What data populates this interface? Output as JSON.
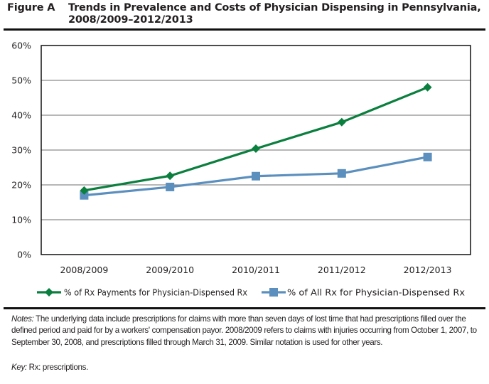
{
  "figure": {
    "label": "Figure A",
    "title_line1": "Trends in Prevalence and Costs of Physician Dispensing in Pennsylvania,",
    "title_line2": "2008/2009–2012/2013"
  },
  "chart_data": {
    "type": "line",
    "title": "Trends in Prevalence and Costs of Physician Dispensing in Pennsylvania, 2008/2009–2012/2013",
    "xlabel": "",
    "ylabel": "",
    "categories": [
      "2008/2009",
      "2009/2010",
      "2010/2011",
      "2011/2012",
      "2012/2013"
    ],
    "ylim": [
      0,
      60
    ],
    "yticks": [
      0,
      10,
      20,
      30,
      40,
      50,
      60
    ],
    "ytick_labels": [
      "0%",
      "10%",
      "20%",
      "30%",
      "40%",
      "50%",
      "60%"
    ],
    "grid": true,
    "legend_position": "bottom",
    "series": [
      {
        "name": "% of Rx Payments for Physician-Dispensed Rx",
        "values": [
          18.4,
          22.6,
          30.4,
          38.0,
          48.0
        ],
        "color": "#0b7f3e",
        "marker": "diamond"
      },
      {
        "name": "% of All Rx for Physician-Dispensed Rx",
        "values": [
          17.0,
          19.4,
          22.5,
          23.3,
          28.0
        ],
        "color": "#5b8fbe",
        "marker": "square"
      }
    ]
  },
  "notes": {
    "label": "Notes:",
    "text": " The underlying data include prescriptions for claims with more than seven days of lost time that had prescriptions filled over the defined period and paid for by a workers' compensation payor. 2008/2009 refers to claims with injuries occurring from October 1, 2007, to September 30, 2008, and prescriptions filled through March 31, 2009. Similar notation is used for other years."
  },
  "key": {
    "label": "Key:",
    "text": " Rx: prescriptions."
  }
}
